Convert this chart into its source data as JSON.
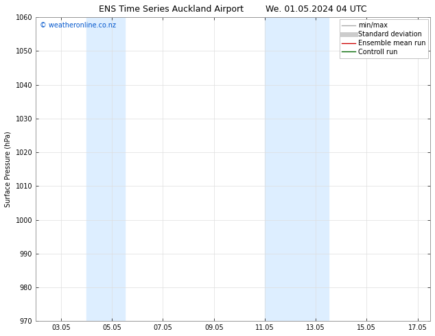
{
  "title_left": "ENS Time Series Auckland Airport",
  "title_right": "We. 01.05.2024 04 UTC",
  "ylabel": "Surface Pressure (hPa)",
  "ylim": [
    970,
    1060
  ],
  "yticks": [
    970,
    980,
    990,
    1000,
    1010,
    1020,
    1030,
    1040,
    1050,
    1060
  ],
  "xtick_labels": [
    "03.05",
    "05.05",
    "07.05",
    "09.05",
    "11.05",
    "13.05",
    "15.05",
    "17.05"
  ],
  "xtick_positions": [
    3,
    5,
    7,
    9,
    11,
    13,
    15,
    17
  ],
  "xlim": [
    2.0,
    17.5
  ],
  "shade_bands": [
    {
      "x_start": 4.0,
      "x_end": 5.5
    },
    {
      "x_start": 11.0,
      "x_end": 13.5
    }
  ],
  "shade_color": "#ddeeff",
  "watermark": "© weatheronline.co.nz",
  "watermark_color": "#0055cc",
  "legend_items": [
    {
      "label": "min/max",
      "color": "#aaaaaa",
      "lw": 1.0,
      "type": "line"
    },
    {
      "label": "Standard deviation",
      "color": "#cccccc",
      "lw": 5.0,
      "type": "line"
    },
    {
      "label": "Ensemble mean run",
      "color": "#cc0000",
      "lw": 1.0,
      "type": "line"
    },
    {
      "label": "Controll run",
      "color": "#006600",
      "lw": 1.0,
      "type": "line"
    }
  ],
  "bg_color": "#ffffff",
  "grid_color": "#dddddd",
  "title_fontsize": 9,
  "label_fontsize": 7,
  "tick_fontsize": 7,
  "watermark_fontsize": 7,
  "legend_fontsize": 7
}
